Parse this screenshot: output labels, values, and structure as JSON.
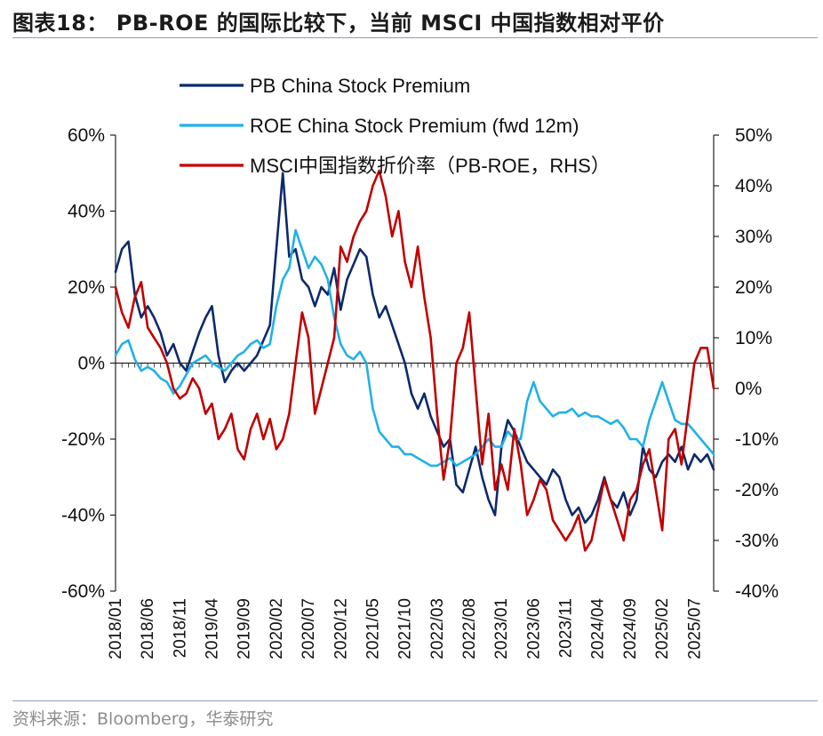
{
  "header": {
    "title": "图表18： PB-ROE 的国际比较下，当前 MSCI 中国指数相对平价"
  },
  "footer": {
    "source": "资料来源：Bloomberg，华泰研究"
  },
  "chart_data": {
    "type": "line",
    "title": "图表18： PB-ROE 的国际比较下，当前 MSCI 中国指数相对平价",
    "left_axis": {
      "min": -60,
      "max": 60,
      "step": 20,
      "ticks": [
        "60%",
        "40%",
        "20%",
        "0%",
        "-20%",
        "-40%",
        "-60%"
      ]
    },
    "right_axis": {
      "min": -40,
      "max": 50,
      "step": 10,
      "ticks": [
        "50%",
        "40%",
        "30%",
        "20%",
        "10%",
        "0%",
        "-10%",
        "-20%",
        "-30%",
        "-40%"
      ]
    },
    "x_range": [
      "2018-01",
      "2025-10"
    ],
    "x_ticks": [
      "2018/01",
      "2018/06",
      "2018/11",
      "2019/04",
      "2019/09",
      "2020/02",
      "2020/07",
      "2020/12",
      "2021/05",
      "2021/10",
      "2022/03",
      "2022/08",
      "2023/01",
      "2023/06",
      "2023/11",
      "2024/04",
      "2024/09",
      "2025/02",
      "2025/07"
    ],
    "legend_position": "top-left",
    "series": [
      {
        "name": "PB China Stock Premium",
        "axis": "left",
        "color": "#0d2a6b",
        "x": [
          "2018-01",
          "2018-02",
          "2018-03",
          "2018-04",
          "2018-05",
          "2018-06",
          "2018-07",
          "2018-08",
          "2018-09",
          "2018-10",
          "2018-11",
          "2018-12",
          "2019-01",
          "2019-02",
          "2019-03",
          "2019-04",
          "2019-05",
          "2019-06",
          "2019-07",
          "2019-08",
          "2019-09",
          "2019-10",
          "2019-11",
          "2019-12",
          "2020-01",
          "2020-02",
          "2020-03",
          "2020-04",
          "2020-05",
          "2020-06",
          "2020-07",
          "2020-08",
          "2020-09",
          "2020-10",
          "2020-11",
          "2020-12",
          "2021-01",
          "2021-02",
          "2021-03",
          "2021-04",
          "2021-05",
          "2021-06",
          "2021-07",
          "2021-08",
          "2021-09",
          "2021-10",
          "2021-11",
          "2021-12",
          "2022-01",
          "2022-02",
          "2022-03",
          "2022-04",
          "2022-05",
          "2022-06",
          "2022-07",
          "2022-08",
          "2022-09",
          "2022-10",
          "2022-11",
          "2022-12",
          "2023-01",
          "2023-02",
          "2023-03",
          "2023-04",
          "2023-05",
          "2023-06",
          "2023-07",
          "2023-08",
          "2023-09",
          "2023-10",
          "2023-11",
          "2023-12",
          "2024-01",
          "2024-02",
          "2024-03",
          "2024-04",
          "2024-05",
          "2024-06",
          "2024-07",
          "2024-08",
          "2024-09",
          "2024-10",
          "2024-11",
          "2024-12",
          "2025-01",
          "2025-02",
          "2025-03",
          "2025-04",
          "2025-05",
          "2025-06",
          "2025-07",
          "2025-08",
          "2025-09",
          "2025-10"
        ],
        "values": [
          24,
          30,
          32,
          18,
          12,
          15,
          12,
          8,
          2,
          5,
          0,
          -2,
          3,
          8,
          12,
          15,
          2,
          -5,
          -2,
          0,
          -2,
          0,
          2,
          6,
          10,
          30,
          50,
          28,
          30,
          22,
          20,
          15,
          20,
          18,
          25,
          14,
          22,
          26,
          30,
          28,
          18,
          12,
          15,
          10,
          5,
          0,
          -8,
          -12,
          -8,
          -14,
          -18,
          -22,
          -20,
          -32,
          -34,
          -28,
          -22,
          -30,
          -36,
          -40,
          -22,
          -15,
          -18,
          -22,
          -26,
          -28,
          -30,
          -32,
          -28,
          -30,
          -36,
          -40,
          -38,
          -42,
          -40,
          -36,
          -30,
          -36,
          -38,
          -34,
          -40,
          -36,
          -22,
          -28,
          -30,
          -26,
          -24,
          -26,
          -22,
          -28,
          -24,
          -26,
          -24,
          -28
        ]
      },
      {
        "name": "ROE China Stock Premium (fwd 12m)",
        "axis": "left",
        "color": "#21b1e6",
        "x": [
          "2018-01",
          "2018-02",
          "2018-03",
          "2018-04",
          "2018-05",
          "2018-06",
          "2018-07",
          "2018-08",
          "2018-09",
          "2018-10",
          "2018-11",
          "2018-12",
          "2019-01",
          "2019-02",
          "2019-03",
          "2019-04",
          "2019-05",
          "2019-06",
          "2019-07",
          "2019-08",
          "2019-09",
          "2019-10",
          "2019-11",
          "2019-12",
          "2020-01",
          "2020-02",
          "2020-03",
          "2020-04",
          "2020-05",
          "2020-06",
          "2020-07",
          "2020-08",
          "2020-09",
          "2020-10",
          "2020-11",
          "2020-12",
          "2021-01",
          "2021-02",
          "2021-03",
          "2021-04",
          "2021-05",
          "2021-06",
          "2021-07",
          "2021-08",
          "2021-09",
          "2021-10",
          "2021-11",
          "2021-12",
          "2022-01",
          "2022-02",
          "2022-03",
          "2022-04",
          "2022-05",
          "2022-06",
          "2022-07",
          "2022-08",
          "2022-09",
          "2022-10",
          "2022-11",
          "2022-12",
          "2023-01",
          "2023-02",
          "2023-03",
          "2023-04",
          "2023-05",
          "2023-06",
          "2023-07",
          "2023-08",
          "2023-09",
          "2023-10",
          "2023-11",
          "2023-12",
          "2024-01",
          "2024-02",
          "2024-03",
          "2024-04",
          "2024-05",
          "2024-06",
          "2024-07",
          "2024-08",
          "2024-09",
          "2024-10",
          "2024-11",
          "2024-12",
          "2025-01",
          "2025-02",
          "2025-03",
          "2025-04",
          "2025-05",
          "2025-06",
          "2025-07",
          "2025-08",
          "2025-09",
          "2025-10"
        ],
        "values": [
          2,
          5,
          6,
          1,
          -2,
          -1,
          -2,
          -4,
          -5,
          -8,
          -6,
          -3,
          0,
          1,
          2,
          0,
          -1,
          -2,
          0,
          2,
          3,
          5,
          6,
          4,
          5,
          15,
          22,
          25,
          35,
          30,
          25,
          28,
          26,
          22,
          12,
          5,
          2,
          1,
          3,
          0,
          -12,
          -18,
          -20,
          -22,
          -22,
          -24,
          -24,
          -25,
          -26,
          -27,
          -27,
          -26,
          -25,
          -27,
          -26,
          -25,
          -24,
          -22,
          -20,
          -22,
          -22,
          -18,
          -20,
          -20,
          -10,
          -5,
          -10,
          -12,
          -14,
          -13,
          -13,
          -12,
          -14,
          -13,
          -14,
          -14,
          -15,
          -16,
          -15,
          -17,
          -20,
          -20,
          -22,
          -15,
          -10,
          -5,
          -10,
          -15,
          -16,
          -16,
          -18,
          -20,
          -22,
          -24
        ]
      },
      {
        "name": "MSCI中国指数折价率（PB-ROE，RHS）",
        "axis": "right",
        "color": "#c00000",
        "x": [
          "2018-01",
          "2018-02",
          "2018-03",
          "2018-04",
          "2018-05",
          "2018-06",
          "2018-07",
          "2018-08",
          "2018-09",
          "2018-10",
          "2018-11",
          "2018-12",
          "2019-01",
          "2019-02",
          "2019-03",
          "2019-04",
          "2019-05",
          "2019-06",
          "2019-07",
          "2019-08",
          "2019-09",
          "2019-10",
          "2019-11",
          "2019-12",
          "2020-01",
          "2020-02",
          "2020-03",
          "2020-04",
          "2020-05",
          "2020-06",
          "2020-07",
          "2020-08",
          "2020-09",
          "2020-10",
          "2020-11",
          "2020-12",
          "2021-01",
          "2021-02",
          "2021-03",
          "2021-04",
          "2021-05",
          "2021-06",
          "2021-07",
          "2021-08",
          "2021-09",
          "2021-10",
          "2021-11",
          "2021-12",
          "2022-01",
          "2022-02",
          "2022-03",
          "2022-04",
          "2022-05",
          "2022-06",
          "2022-07",
          "2022-08",
          "2022-09",
          "2022-10",
          "2022-11",
          "2022-12",
          "2023-01",
          "2023-02",
          "2023-03",
          "2023-04",
          "2023-05",
          "2023-06",
          "2023-07",
          "2023-08",
          "2023-09",
          "2023-10",
          "2023-11",
          "2023-12",
          "2024-01",
          "2024-02",
          "2024-03",
          "2024-04",
          "2024-05",
          "2024-06",
          "2024-07",
          "2024-08",
          "2024-09",
          "2024-10",
          "2024-11",
          "2024-12",
          "2025-01",
          "2025-02",
          "2025-03",
          "2025-04",
          "2025-05",
          "2025-06",
          "2025-07",
          "2025-08",
          "2025-09",
          "2025-10"
        ],
        "values": [
          20,
          15,
          12,
          18,
          21,
          12,
          10,
          8,
          5,
          0,
          -2,
          -1,
          2,
          0,
          -5,
          -3,
          -10,
          -8,
          -5,
          -12,
          -14,
          -8,
          -5,
          -10,
          -6,
          -12,
          -10,
          -5,
          5,
          15,
          10,
          -5,
          0,
          5,
          10,
          28,
          25,
          30,
          33,
          35,
          40,
          43,
          38,
          30,
          35,
          25,
          20,
          28,
          18,
          10,
          -5,
          -18,
          -10,
          5,
          8,
          15,
          0,
          -15,
          -5,
          -20,
          -15,
          -20,
          -8,
          -15,
          -25,
          -22,
          -18,
          -20,
          -26,
          -28,
          -30,
          -28,
          -25,
          -32,
          -30,
          -24,
          -18,
          -22,
          -26,
          -30,
          -22,
          -20,
          -15,
          -12,
          -20,
          -28,
          -10,
          -8,
          -15,
          -5,
          5,
          8,
          8,
          0
        ]
      }
    ]
  }
}
